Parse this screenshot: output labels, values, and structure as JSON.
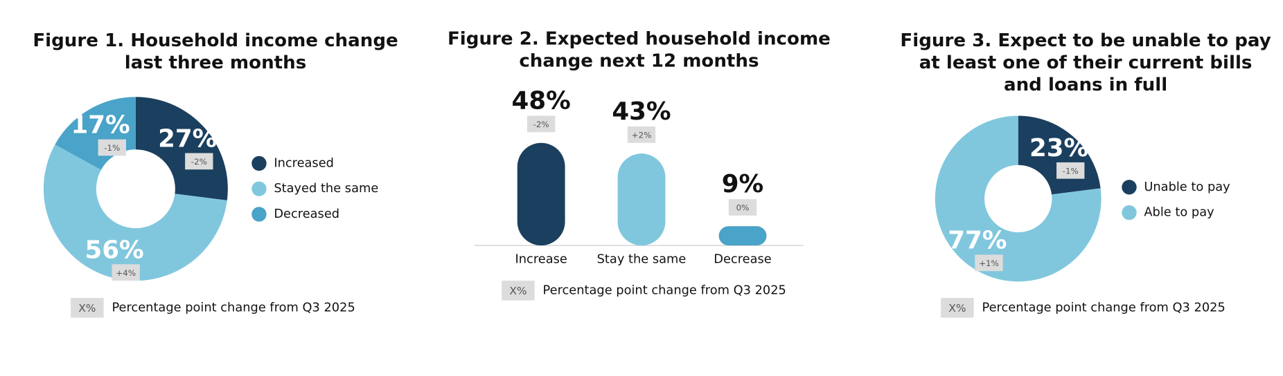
{
  "chart_data": [
    {
      "type": "donut",
      "title": [
        "Figure 1. Household income change",
        "last three months"
      ],
      "categories": [
        "Increased",
        "Stayed the same",
        "Decreased"
      ],
      "values": [
        27,
        56,
        17
      ],
      "value_labels": [
        "27%",
        "56%",
        "17%"
      ],
      "changes": [
        -2,
        4,
        -1
      ],
      "change_labels": [
        "-2%",
        "+4%",
        "-1%"
      ],
      "colors": [
        "#1b3f5e",
        "#80c7dd",
        "#4aa3c8"
      ],
      "note": {
        "symbol": "X%",
        "text": "Percentage point change from Q3 2025"
      }
    },
    {
      "type": "bar",
      "title": [
        "Figure 2. Expected household income",
        "change next 12 months"
      ],
      "categories": [
        "Increase",
        "Stay the same",
        "Decrease"
      ],
      "values": [
        48,
        43,
        9
      ],
      "value_labels": [
        "48%",
        "43%",
        "9%"
      ],
      "changes": [
        -2,
        2,
        0
      ],
      "change_labels": [
        "-2%",
        "+2%",
        "0%"
      ],
      "colors": [
        "#1b3f5e",
        "#80c7dd",
        "#4aa3c8"
      ],
      "note": {
        "symbol": "X%",
        "text": "Percentage point change from Q3 2025"
      }
    },
    {
      "type": "donut",
      "title": [
        "Figure 3. Expect to be unable to pay",
        "at least one of their current bills",
        "and loans in full"
      ],
      "categories": [
        "Unable to pay",
        "Able to pay"
      ],
      "values": [
        23,
        77
      ],
      "value_labels": [
        "23%",
        "77%"
      ],
      "changes": [
        -1,
        1
      ],
      "change_labels": [
        "-1%",
        "+1%"
      ],
      "colors": [
        "#1b3f5e",
        "#80c7dd"
      ],
      "note": {
        "symbol": "X%",
        "text": "Percentage point change from Q3 2025"
      }
    }
  ]
}
